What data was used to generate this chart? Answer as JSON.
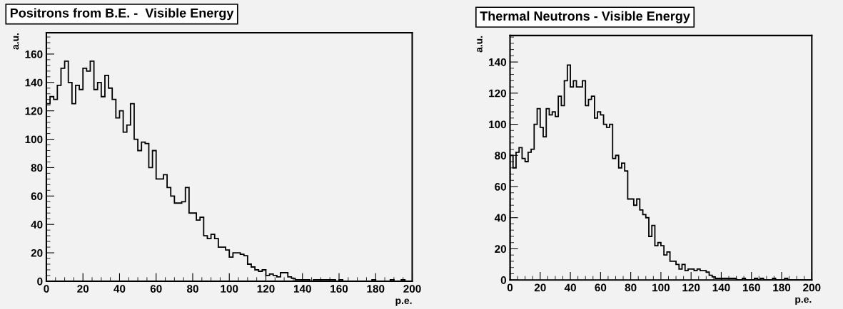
{
  "chart_data": [
    {
      "type": "histogram",
      "title": "Positrons from B.E. -  Visible Energy",
      "xlabel": "p.e.",
      "ylabel": "a.u.",
      "color": "#000000",
      "bins": [
        0,
        2,
        4,
        6,
        8,
        10,
        12,
        14,
        16,
        18,
        20,
        22,
        24,
        26,
        28,
        30,
        32,
        34,
        36,
        38,
        40,
        42,
        44,
        46,
        48,
        50,
        52,
        54,
        56,
        58,
        60,
        62,
        64,
        66,
        68,
        70,
        72,
        74,
        76,
        78,
        80,
        82,
        84,
        86,
        88,
        90,
        92,
        94,
        96,
        98,
        100,
        102,
        104,
        106,
        108,
        110,
        112,
        114,
        116,
        118,
        120,
        122,
        124,
        126,
        128,
        130,
        132,
        134,
        136,
        138,
        140,
        142,
        144,
        146,
        148,
        150,
        152,
        154,
        156,
        158,
        160,
        162,
        164,
        166,
        168,
        170,
        172,
        174,
        176,
        178,
        180,
        182,
        184,
        186,
        188,
        190,
        192,
        194,
        196,
        198,
        200
      ],
      "values": [
        125,
        130,
        128,
        138,
        150,
        155,
        140,
        125,
        138,
        135,
        150,
        148,
        155,
        135,
        140,
        130,
        145,
        136,
        128,
        115,
        120,
        105,
        110,
        125,
        100,
        92,
        98,
        97,
        80,
        92,
        72,
        72,
        75,
        66,
        60,
        55,
        55,
        56,
        66,
        48,
        48,
        43,
        45,
        32,
        30,
        33,
        30,
        24,
        24,
        22,
        17,
        20,
        20,
        19,
        18,
        12,
        10,
        8,
        7,
        8,
        4,
        5,
        4,
        3,
        6,
        6,
        3,
        2,
        1,
        1,
        1,
        1,
        0,
        1,
        1,
        1,
        1,
        1,
        1,
        0,
        1,
        0,
        0,
        0,
        0,
        0,
        0,
        0,
        0,
        1,
        0,
        0,
        0,
        0,
        1,
        0,
        0,
        1,
        0,
        0
      ],
      "xlim": [
        0,
        200
      ],
      "ylim": [
        0,
        175
      ],
      "xticks": [
        0,
        20,
        40,
        60,
        80,
        100,
        120,
        140,
        160,
        180,
        200
      ],
      "yticks": [
        0,
        20,
        40,
        60,
        80,
        100,
        120,
        140,
        160
      ],
      "grid": false
    },
    {
      "type": "histogram",
      "title": "Thermal Neutrons - Visible Energy",
      "xlabel": "p.e.",
      "ylabel": "a.u.",
      "color": "#000000",
      "bins": [
        0,
        2,
        4,
        6,
        8,
        10,
        12,
        14,
        16,
        18,
        20,
        22,
        24,
        26,
        28,
        30,
        32,
        34,
        36,
        38,
        40,
        42,
        44,
        46,
        48,
        50,
        52,
        54,
        56,
        58,
        60,
        62,
        64,
        66,
        68,
        70,
        72,
        74,
        76,
        78,
        80,
        82,
        84,
        86,
        88,
        90,
        92,
        94,
        96,
        98,
        100,
        102,
        104,
        106,
        108,
        110,
        112,
        114,
        116,
        118,
        120,
        122,
        124,
        126,
        128,
        130,
        132,
        134,
        136,
        138,
        140,
        142,
        144,
        146,
        148,
        150,
        152,
        154,
        156,
        158,
        160,
        162,
        164,
        166,
        168,
        170,
        172,
        174,
        176,
        178,
        180,
        182,
        184,
        186,
        188,
        190,
        192,
        194,
        196,
        198,
        200
      ],
      "values": [
        80,
        72,
        82,
        85,
        78,
        76,
        82,
        84,
        100,
        110,
        98,
        92,
        110,
        106,
        108,
        105,
        118,
        112,
        128,
        138,
        124,
        128,
        124,
        124,
        128,
        112,
        116,
        118,
        104,
        108,
        106,
        100,
        98,
        100,
        78,
        80,
        72,
        75,
        70,
        52,
        52,
        48,
        52,
        45,
        42,
        40,
        28,
        35,
        22,
        24,
        22,
        16,
        18,
        12,
        12,
        10,
        7,
        10,
        6,
        7,
        7,
        6,
        7,
        6,
        6,
        5,
        3,
        2,
        1,
        1,
        1,
        1,
        1,
        1,
        1,
        0,
        0,
        1,
        0,
        0,
        0,
        1,
        0,
        1,
        0,
        0,
        0,
        1,
        0,
        0,
        0,
        1,
        0,
        0,
        0,
        0,
        0,
        0,
        0,
        0
      ],
      "xlim": [
        0,
        200
      ],
      "ylim": [
        0,
        157
      ],
      "xticks": [
        0,
        20,
        40,
        60,
        80,
        100,
        120,
        140,
        160,
        180,
        200
      ],
      "yticks": [
        0,
        20,
        40,
        60,
        80,
        100,
        120,
        140
      ],
      "grid": false
    }
  ]
}
